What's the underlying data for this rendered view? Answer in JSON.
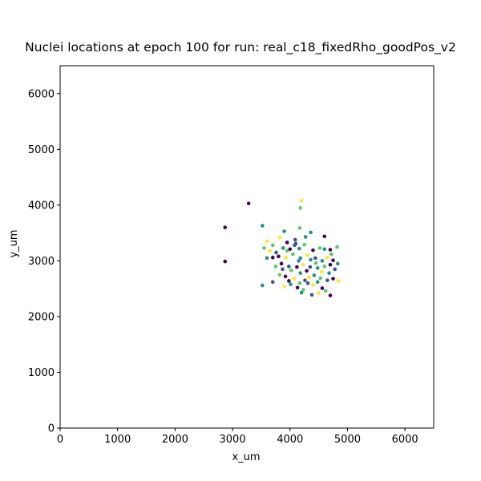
{
  "chart_data": {
    "type": "scatter",
    "title": "Nuclei locations at epoch 100 for run: real_c18_fixedRho_goodPos_v2",
    "xlabel": "x_um",
    "ylabel": "y_um",
    "xlim": [
      0,
      6500
    ],
    "ylim": [
      0,
      6500
    ],
    "xticks": [
      "0",
      "1000",
      "2000",
      "3000",
      "4000",
      "5000",
      "6000"
    ],
    "yticks": [
      "0",
      "1000",
      "2000",
      "3000",
      "4000",
      "5000",
      "6000"
    ],
    "grid": false,
    "legend": "none",
    "colormap": "viridis",
    "palette": [
      "#440154",
      "#3b528b",
      "#21918c",
      "#5ec962",
      "#fde725"
    ],
    "points": [
      [
        3280,
        4030,
        0
      ],
      [
        4200,
        4080,
        4
      ],
      [
        4180,
        3950,
        3
      ],
      [
        2870,
        3600,
        0
      ],
      [
        2870,
        2990,
        0
      ],
      [
        3520,
        3630,
        2
      ],
      [
        4170,
        3590,
        3
      ],
      [
        3900,
        3530,
        2
      ],
      [
        4360,
        3510,
        2
      ],
      [
        4600,
        3440,
        0
      ],
      [
        4270,
        3430,
        2
      ],
      [
        3820,
        3420,
        4
      ],
      [
        3600,
        3350,
        4
      ],
      [
        3700,
        3280,
        3
      ],
      [
        3950,
        3330,
        0
      ],
      [
        4100,
        3310,
        1
      ],
      [
        4250,
        3290,
        3
      ],
      [
        4520,
        3230,
        3
      ],
      [
        4600,
        3210,
        2
      ],
      [
        4700,
        3200,
        0
      ],
      [
        4820,
        3250,
        3
      ],
      [
        3550,
        3230,
        3
      ],
      [
        3880,
        3230,
        2
      ],
      [
        4000,
        3210,
        0
      ],
      [
        4160,
        3220,
        2
      ],
      [
        4400,
        3190,
        0
      ],
      [
        3760,
        3150,
        1
      ],
      [
        3600,
        3050,
        2
      ],
      [
        3700,
        3060,
        0
      ],
      [
        3800,
        3080,
        0
      ],
      [
        3930,
        3060,
        4
      ],
      [
        4050,
        3120,
        3
      ],
      [
        4180,
        3050,
        2
      ],
      [
        4300,
        3100,
        4
      ],
      [
        4440,
        3050,
        1
      ],
      [
        4560,
        3000,
        2
      ],
      [
        4650,
        3060,
        4
      ],
      [
        4750,
        3010,
        0
      ],
      [
        4830,
        2950,
        2
      ],
      [
        3750,
        2900,
        3
      ],
      [
        3850,
        2950,
        0
      ],
      [
        3980,
        2900,
        1
      ],
      [
        4120,
        2890,
        0
      ],
      [
        4230,
        2930,
        4
      ],
      [
        4350,
        2890,
        1
      ],
      [
        4480,
        2870,
        2
      ],
      [
        4600,
        2900,
        3
      ],
      [
        4700,
        2930,
        0
      ],
      [
        3820,
        2750,
        3
      ],
      [
        3920,
        2720,
        0
      ],
      [
        4070,
        2680,
        4
      ],
      [
        4180,
        2780,
        2
      ],
      [
        4260,
        2650,
        1
      ],
      [
        4330,
        2700,
        4
      ],
      [
        4420,
        2740,
        2
      ],
      [
        4530,
        2690,
        3
      ],
      [
        4650,
        2650,
        1
      ],
      [
        4750,
        2680,
        0
      ],
      [
        4840,
        2640,
        4
      ],
      [
        3520,
        2560,
        2
      ],
      [
        3700,
        2620,
        1
      ],
      [
        3900,
        2540,
        4
      ],
      [
        4010,
        2580,
        2
      ],
      [
        4130,
        2520,
        0
      ],
      [
        4230,
        2480,
        3
      ],
      [
        4310,
        2600,
        1
      ],
      [
        4400,
        2570,
        4
      ],
      [
        4480,
        2620,
        2
      ],
      [
        4560,
        2510,
        0
      ],
      [
        4620,
        2460,
        3
      ],
      [
        4700,
        2380,
        0
      ],
      [
        4380,
        2390,
        1
      ],
      [
        4500,
        2420,
        4
      ],
      [
        4200,
        2430,
        2
      ],
      [
        3950,
        3180,
        3
      ],
      [
        4080,
        3280,
        1
      ],
      [
        4150,
        3000,
        2
      ],
      [
        4020,
        2830,
        3
      ],
      [
        3870,
        2850,
        1
      ],
      [
        4290,
        2820,
        0
      ],
      [
        4450,
        2960,
        3
      ],
      [
        4550,
        2800,
        4
      ],
      [
        4680,
        2780,
        2
      ],
      [
        4780,
        2850,
        1
      ],
      [
        4720,
        3120,
        3
      ],
      [
        3650,
        3180,
        4
      ],
      [
        4090,
        3380,
        1
      ],
      [
        3980,
        2640,
        0
      ],
      [
        4170,
        2600,
        3
      ],
      [
        4360,
        3020,
        2
      ]
    ]
  }
}
